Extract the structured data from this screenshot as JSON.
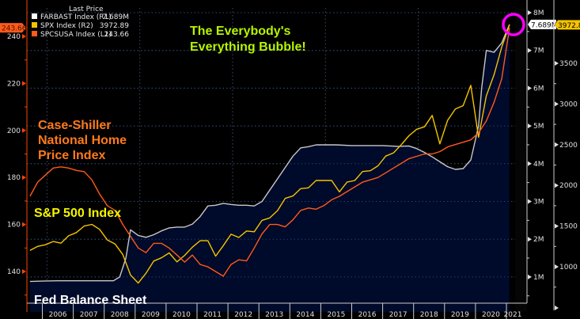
{
  "chart_data": {
    "type": "line",
    "title": "The Everybody's Everything Bubble!",
    "legend": {
      "header": "Last Price",
      "placement": "top-left",
      "entries": [
        {
          "name": "FARBAST Index",
          "axis": "(R1)",
          "last": "7.689M",
          "color": "#ffffff"
        },
        {
          "name": "SPX Index",
          "axis": "(R2)",
          "last": "3972.89",
          "color": "#f5c400"
        },
        {
          "name": "SPCSUSA Index",
          "axis": "(L1)",
          "last": "243.66",
          "color": "#ff5a1a"
        }
      ]
    },
    "annotations": [
      {
        "text_lines": [
          "The Everybody's",
          "Everything Bubble!"
        ],
        "color": "#b6f500"
      },
      {
        "text_lines": [
          "Case-Shiller",
          "National Home",
          "Price Index"
        ],
        "color": "#ff7a1a"
      },
      {
        "text_lines": [
          "S&P 500 Index"
        ],
        "color": "#f5f500"
      },
      {
        "text_lines": [
          "Fed Balance Sheet"
        ],
        "color": "#ffffff"
      }
    ],
    "x_ticks": [
      "2006",
      "2007",
      "2008",
      "2009",
      "2010",
      "2011",
      "2012",
      "2013",
      "2014",
      "2015",
      "2016",
      "2017",
      "2018",
      "2019",
      "2020",
      "2021"
    ],
    "x_range": [
      2005.6,
      2021.25
    ],
    "axes": {
      "left": {
        "label": "SPCSUSA (L1)",
        "ticks": [
          140,
          160,
          180,
          200,
          220,
          240
        ],
        "range": [
          128,
          250
        ],
        "color": "#ff4400",
        "last_label": "243.66"
      },
      "right1": {
        "label": "FARBAST (R1)",
        "ticks": [
          "1M",
          "2M",
          "3M",
          "4M",
          "5M",
          "6M",
          "7M",
          "8M"
        ],
        "tick_values": [
          1,
          2,
          3,
          4,
          5,
          6,
          7,
          8
        ],
        "range": [
          0.1,
          8.1
        ],
        "unit": "M",
        "last_label": "7.689M"
      },
      "right2": {
        "label": "SPX (R2)",
        "ticks": [
          1000,
          1500,
          2000,
          2500,
          3000,
          3500
        ],
        "range": [
          500,
          4200
        ],
        "last_label": "3972.89"
      }
    },
    "grid": true,
    "series": [
      {
        "name": "SPCSUSA Index",
        "axis": "left",
        "color": "#ff5a1a",
        "x": [
          2005.6,
          2005.85,
          2006.1,
          2006.35,
          2006.6,
          2006.85,
          2007.1,
          2007.35,
          2007.6,
          2007.85,
          2008.1,
          2008.35,
          2008.6,
          2008.85,
          2009.1,
          2009.35,
          2009.6,
          2009.85,
          2010.1,
          2010.35,
          2010.6,
          2010.85,
          2011.1,
          2011.35,
          2011.6,
          2011.85,
          2012.1,
          2012.35,
          2012.6,
          2012.85,
          2013.1,
          2013.35,
          2013.6,
          2013.85,
          2014.1,
          2014.35,
          2014.6,
          2014.85,
          2015.1,
          2015.35,
          2015.6,
          2015.85,
          2016.1,
          2016.35,
          2016.6,
          2016.85,
          2017.1,
          2017.35,
          2017.6,
          2017.85,
          2018.1,
          2018.35,
          2018.6,
          2018.85,
          2019.1,
          2019.35,
          2019.6,
          2019.85,
          2020.1,
          2020.35,
          2020.6,
          2020.85,
          2021.1
        ],
        "values": [
          172,
          178,
          181,
          184,
          184.5,
          184,
          183,
          182.5,
          179,
          173,
          168,
          166,
          160,
          155,
          150,
          148,
          152,
          152,
          150,
          147,
          144,
          147,
          143,
          142,
          140,
          138,
          143,
          145,
          144.5,
          150,
          156,
          160,
          160,
          159,
          162,
          166,
          167,
          166.5,
          168,
          170.5,
          172,
          174,
          176,
          178,
          179,
          180,
          182,
          184,
          186,
          188,
          189,
          190,
          190,
          191,
          193,
          194,
          195,
          196,
          199,
          204,
          212,
          222,
          243.66
        ]
      },
      {
        "name": "SPX Index",
        "axis": "right2",
        "color": "#f5c400",
        "x": [
          2005.6,
          2005.85,
          2006.1,
          2006.35,
          2006.6,
          2006.85,
          2007.1,
          2007.35,
          2007.6,
          2007.85,
          2008.1,
          2008.35,
          2008.6,
          2008.85,
          2009.1,
          2009.35,
          2009.6,
          2009.85,
          2010.1,
          2010.35,
          2010.6,
          2010.85,
          2011.1,
          2011.35,
          2011.6,
          2011.85,
          2012.1,
          2012.35,
          2012.6,
          2012.85,
          2013.1,
          2013.35,
          2013.6,
          2013.85,
          2014.1,
          2014.35,
          2014.6,
          2014.85,
          2015.1,
          2015.35,
          2015.6,
          2015.85,
          2016.1,
          2016.35,
          2016.6,
          2016.85,
          2017.1,
          2017.35,
          2017.6,
          2017.85,
          2018.1,
          2018.35,
          2018.6,
          2018.85,
          2019.1,
          2019.35,
          2019.6,
          2019.85,
          2020.1,
          2020.35,
          2020.6,
          2020.85,
          2021.1
        ],
        "values": [
          1200,
          1250,
          1270,
          1310,
          1290,
          1380,
          1420,
          1500,
          1520,
          1460,
          1330,
          1280,
          1150,
          900,
          800,
          920,
          1070,
          1110,
          1170,
          1060,
          1140,
          1240,
          1320,
          1320,
          1130,
          1260,
          1400,
          1360,
          1440,
          1430,
          1570,
          1600,
          1690,
          1840,
          1870,
          1960,
          1970,
          2060,
          2060,
          2060,
          1920,
          2040,
          2060,
          2170,
          2180,
          2240,
          2360,
          2400,
          2500,
          2610,
          2690,
          2720,
          2860,
          2510,
          2800,
          2940,
          2980,
          3230,
          2590,
          3100,
          3360,
          3700,
          3972.89
        ]
      },
      {
        "name": "FARBAST Index",
        "axis": "right1",
        "color": "#c8c8c8",
        "fill": "#000a2a",
        "x": [
          2005.6,
          2006.0,
          2006.5,
          2007.0,
          2007.5,
          2008.0,
          2008.3,
          2008.5,
          2008.7,
          2008.85,
          2009.1,
          2009.35,
          2009.6,
          2009.85,
          2010.1,
          2010.35,
          2010.6,
          2010.85,
          2011.1,
          2011.35,
          2011.6,
          2011.85,
          2012.1,
          2012.35,
          2012.6,
          2012.85,
          2013.1,
          2013.35,
          2013.6,
          2013.85,
          2014.1,
          2014.35,
          2014.6,
          2014.85,
          2015.1,
          2015.5,
          2016.0,
          2016.5,
          2017.0,
          2017.5,
          2017.85,
          2018.1,
          2018.35,
          2018.6,
          2018.85,
          2019.1,
          2019.35,
          2019.6,
          2019.85,
          2020.1,
          2020.2,
          2020.35,
          2020.6,
          2020.85,
          2021.1
        ],
        "values": [
          0.88,
          0.89,
          0.9,
          0.9,
          0.9,
          0.9,
          0.9,
          1.0,
          1.5,
          2.25,
          2.1,
          2.05,
          2.12,
          2.22,
          2.3,
          2.32,
          2.32,
          2.4,
          2.6,
          2.88,
          2.9,
          2.95,
          2.92,
          2.9,
          2.9,
          2.88,
          3.0,
          3.3,
          3.6,
          3.9,
          4.2,
          4.42,
          4.45,
          4.5,
          4.5,
          4.5,
          4.48,
          4.48,
          4.48,
          4.46,
          4.47,
          4.4,
          4.3,
          4.18,
          4.05,
          3.92,
          3.85,
          3.87,
          4.1,
          5.0,
          6.0,
          7.0,
          6.95,
          7.2,
          7.689
        ]
      }
    ]
  }
}
